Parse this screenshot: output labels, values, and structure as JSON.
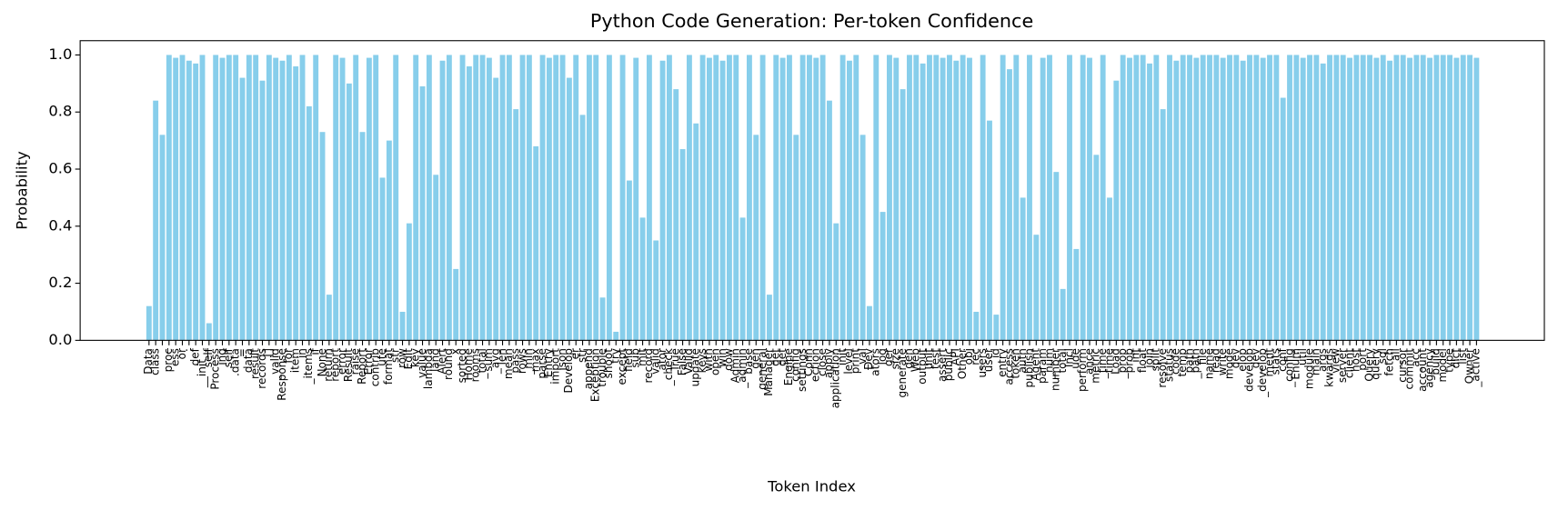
{
  "chart_data": {
    "type": "bar",
    "title": "Python Code Generation: Per-token Confidence",
    "x_label": "Token Index",
    "y_label": "Probability",
    "color": "#87ceeb",
    "ylim": [
      0,
      1.05
    ],
    "yticks": [
      {
        "value": 0,
        "label": "0.0"
      },
      0.2,
      0.4,
      0.6,
      0.8,
      {
        "value": 1,
        "label": "1.0"
      }
    ],
    "categories": [
      "Data",
      "class",
      "_",
      "proc",
      "ess",
      "or",
      ":",
      "def",
      "__init__",
      "self",
      "Process",
      "ing",
      "self",
      ".data",
      "=",
      "data",
      "result",
      "records",
      "[]",
      "_valid",
      "Response",
      "for",
      "item",
      "in",
      "_items",
      "if",
      "None",
      "return",
      "report",
      "error",
      "Result",
      "raise",
      "Report",
      "Error",
      "contrib",
      "ute",
      "format",
      "str",
      "row",
      "Edit",
      "key",
      "value",
      "lambda",
      "land",
      "Alert",
      "round",
      "x",
      "sorted",
      "Home",
      "rooms",
      "_total",
      "sum",
      "_avg",
      "len",
      "mean",
      "pass",
      "rows",
      "_min",
      "max",
      "parse",
      "Entry",
      "import",
      "json",
      "Develop",
      "er",
      "_str",
      "append",
      "Exception",
      "trouble",
      "shoot",
      "try",
      "except",
      "field",
      "sub",
      "mit",
      "record",
      "valid",
      "ator",
      "_check",
      "True",
      "False",
      "Valid",
      "update",
      "keys",
      "with",
      "open",
      "win",
      "dow",
      "Admin",
      "_admin",
      "base",
      "_gen",
      "general",
      "Manager",
      "get",
      "_get",
      "Engine",
      "config",
      "settings",
      "Conn",
      "ection",
      "close",
      "apply",
      "application",
      "init",
      "level",
      "print",
      "_val",
      "Dev",
      "ators",
      "log",
      "ger",
      "size",
      "generate",
      "gen",
      "Web",
      "output",
      "unit",
      "test",
      "assert",
      "public",
      "API",
      "Other",
      "obj",
      "_rec",
      "users",
      "user",
      "id",
      "entry",
      "access",
      "token",
      "auth",
      "publish",
      "Agent",
      "param",
      "_num",
      "number",
      "total",
      "Incl",
      "ude",
      "perform",
      "ance",
      "metric",
      "_time",
      "time",
      "Load",
      "_prop",
      "prop",
      "int",
      "float",
      "join",
      "split",
      "resolve",
      "status",
      "code",
      "temp",
      "path",
      "_path",
      "file",
      "name",
      "read",
      "write",
      "mode",
      "dev",
      "elop",
      "develop",
      "_dev",
      "_develop",
      "ment",
      "stats",
      "conf",
      "_config",
      "Enum",
      "util",
      "module",
      "main",
      "args",
      "kwargs",
      "view",
      "server",
      "client",
      "host",
      "port",
      "Query",
      "query",
      "sql",
      "fetch",
      "_all",
      "cursor",
      "commit",
      "_acc",
      "account",
      "agency",
      "build",
      "model",
      "type",
      "dict",
      "list",
      "Owner",
      "_active"
    ],
    "values": [
      0.12,
      0.84,
      0.72,
      1.0,
      0.99,
      1.0,
      0.98,
      0.97,
      1.0,
      0.06,
      1.0,
      0.99,
      1.0,
      1.0,
      0.92,
      1.0,
      1.0,
      0.91,
      1.0,
      0.99,
      0.98,
      1.0,
      0.96,
      1.0,
      0.82,
      1.0,
      0.73,
      0.16,
      1.0,
      0.99,
      0.9,
      1.0,
      0.73,
      0.99,
      1.0,
      0.57,
      0.7,
      1.0,
      0.1,
      0.41,
      1.0,
      0.89,
      1.0,
      0.58,
      0.98,
      1.0,
      0.25,
      1.0,
      0.96,
      1.0,
      1.0,
      0.99,
      0.92,
      1.0,
      1.0,
      0.81,
      1.0,
      1.0,
      0.68,
      1.0,
      0.99,
      1.0,
      1.0,
      0.92,
      1.0,
      0.79,
      1.0,
      1.0,
      0.15,
      1.0,
      0.03,
      1.0,
      0.56,
      0.99,
      0.43,
      1.0,
      0.35,
      0.98,
      1.0,
      0.88,
      0.67,
      1.0,
      0.76,
      1.0,
      0.99,
      1.0,
      0.98,
      1.0,
      1.0,
      0.43,
      1.0,
      0.72,
      1.0,
      0.16,
      1.0,
      0.99,
      1.0,
      0.72,
      1.0,
      1.0,
      0.99,
      1.0,
      0.84,
      0.41,
      1.0,
      0.98,
      1.0,
      0.72,
      0.12,
      1.0,
      0.45,
      1.0,
      0.99,
      0.88,
      1.0,
      1.0,
      0.97,
      1.0,
      1.0,
      0.99,
      1.0,
      0.98,
      1.0,
      0.99,
      0.1,
      1.0,
      0.77,
      0.09,
      1.0,
      0.95,
      1.0,
      0.5,
      1.0,
      0.37,
      0.99,
      1.0,
      0.59,
      0.18,
      1.0,
      0.32,
      1.0,
      0.99,
      0.65,
      1.0,
      0.5,
      0.91,
      1.0,
      0.99,
      1.0,
      1.0,
      0.97,
      1.0,
      0.81,
      1.0,
      0.98,
      1.0,
      1.0,
      0.99,
      1.0,
      1.0,
      1.0,
      0.99,
      1.0,
      1.0,
      0.98,
      1.0,
      1.0,
      0.99,
      1.0,
      1.0,
      0.85,
      1.0,
      1.0,
      0.99,
      1.0,
      1.0,
      0.97,
      1.0,
      1.0,
      1.0,
      0.99,
      1.0,
      1.0,
      1.0,
      0.99,
      1.0,
      0.98,
      1.0,
      1.0,
      0.99,
      1.0,
      1.0,
      0.99,
      1.0,
      1.0,
      1.0,
      0.99,
      1.0,
      1.0,
      0.99
    ]
  }
}
